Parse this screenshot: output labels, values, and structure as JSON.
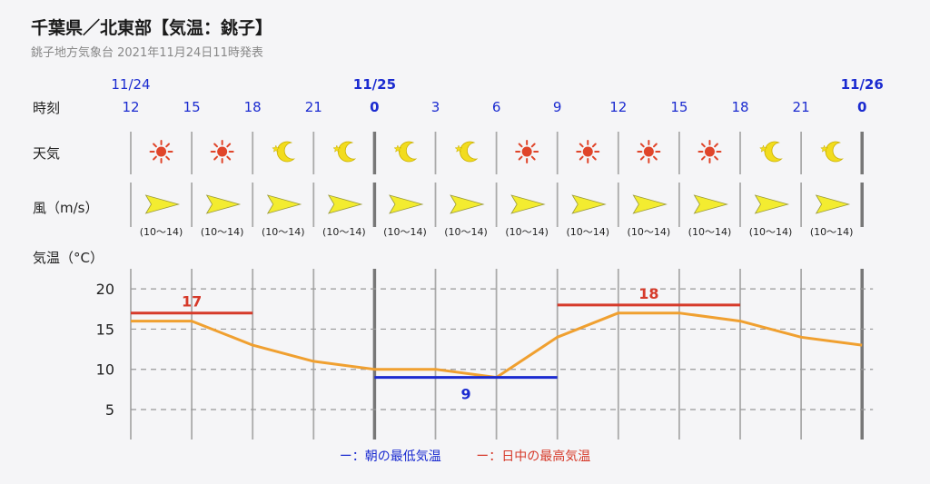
{
  "header": {
    "title": "千葉県／北東部【気温：銚子】",
    "subtitle": "銚子地方気象台 2021年11月24日11時発表"
  },
  "rows": {
    "time_label": "時刻",
    "weather_label": "天気",
    "wind_label": "風（m/s）",
    "temp_label": "気温（°C）"
  },
  "dates": [
    {
      "label": "11/24",
      "col": 0
    },
    {
      "label": "11/25",
      "col": 4
    },
    {
      "label": "11/26",
      "col": 12
    }
  ],
  "hours": [
    "12",
    "15",
    "18",
    "21",
    "0",
    "3",
    "6",
    "9",
    "12",
    "15",
    "18",
    "21",
    "0"
  ],
  "day_boundaries": [
    4,
    12
  ],
  "weather": [
    "sun",
    "sun",
    "moon",
    "moon",
    "moon",
    "moon",
    "sun",
    "sun",
    "sun",
    "sun",
    "moon",
    "moon"
  ],
  "wind": [
    "(10〜14)",
    "(10〜14)",
    "(10〜14)",
    "(10〜14)",
    "(10〜14)",
    "(10〜14)",
    "(10〜14)",
    "(10〜14)",
    "(10〜14)",
    "(10〜14)",
    "(10〜14)",
    "(10〜14)"
  ],
  "colors": {
    "date": "#1b2bd0",
    "hour": "#1b2bd0",
    "line": "#f0a030",
    "max": "#d63a2a",
    "min": "#1b2bd0",
    "grid": "#999999",
    "sun": "#e0452a",
    "moon": "#f2dc1e",
    "arrow": "#f3ec30"
  },
  "chart_data": {
    "type": "line",
    "ylabel": "気温（°C）",
    "y_ticks": [
      5,
      10,
      15,
      20
    ],
    "ylim": [
      1.5,
      22.5
    ],
    "x": [
      "11/24 12",
      "15",
      "18",
      "21",
      "11/25 0",
      "3",
      "6",
      "9",
      "12",
      "15",
      "18",
      "21",
      "11/26 0"
    ],
    "series": [
      {
        "name": "",
        "values": [
          16,
          16,
          13,
          11,
          10,
          10,
          9,
          14,
          17,
          17,
          16,
          14,
          13
        ]
      }
    ],
    "max_temp": [
      {
        "label": "17",
        "value": 17,
        "from": 0,
        "to": 2
      },
      {
        "label": "18",
        "value": 18,
        "from": 7,
        "to": 10
      }
    ],
    "min_temp": [
      {
        "label": "9",
        "value": 9,
        "from": 4,
        "to": 7
      }
    ],
    "legend": [
      {
        "label": "ー：朝の最低気温",
        "color": "#1b2bd0"
      },
      {
        "label": "ー：日中の最高気温",
        "color": "#d63a2a"
      }
    ]
  }
}
